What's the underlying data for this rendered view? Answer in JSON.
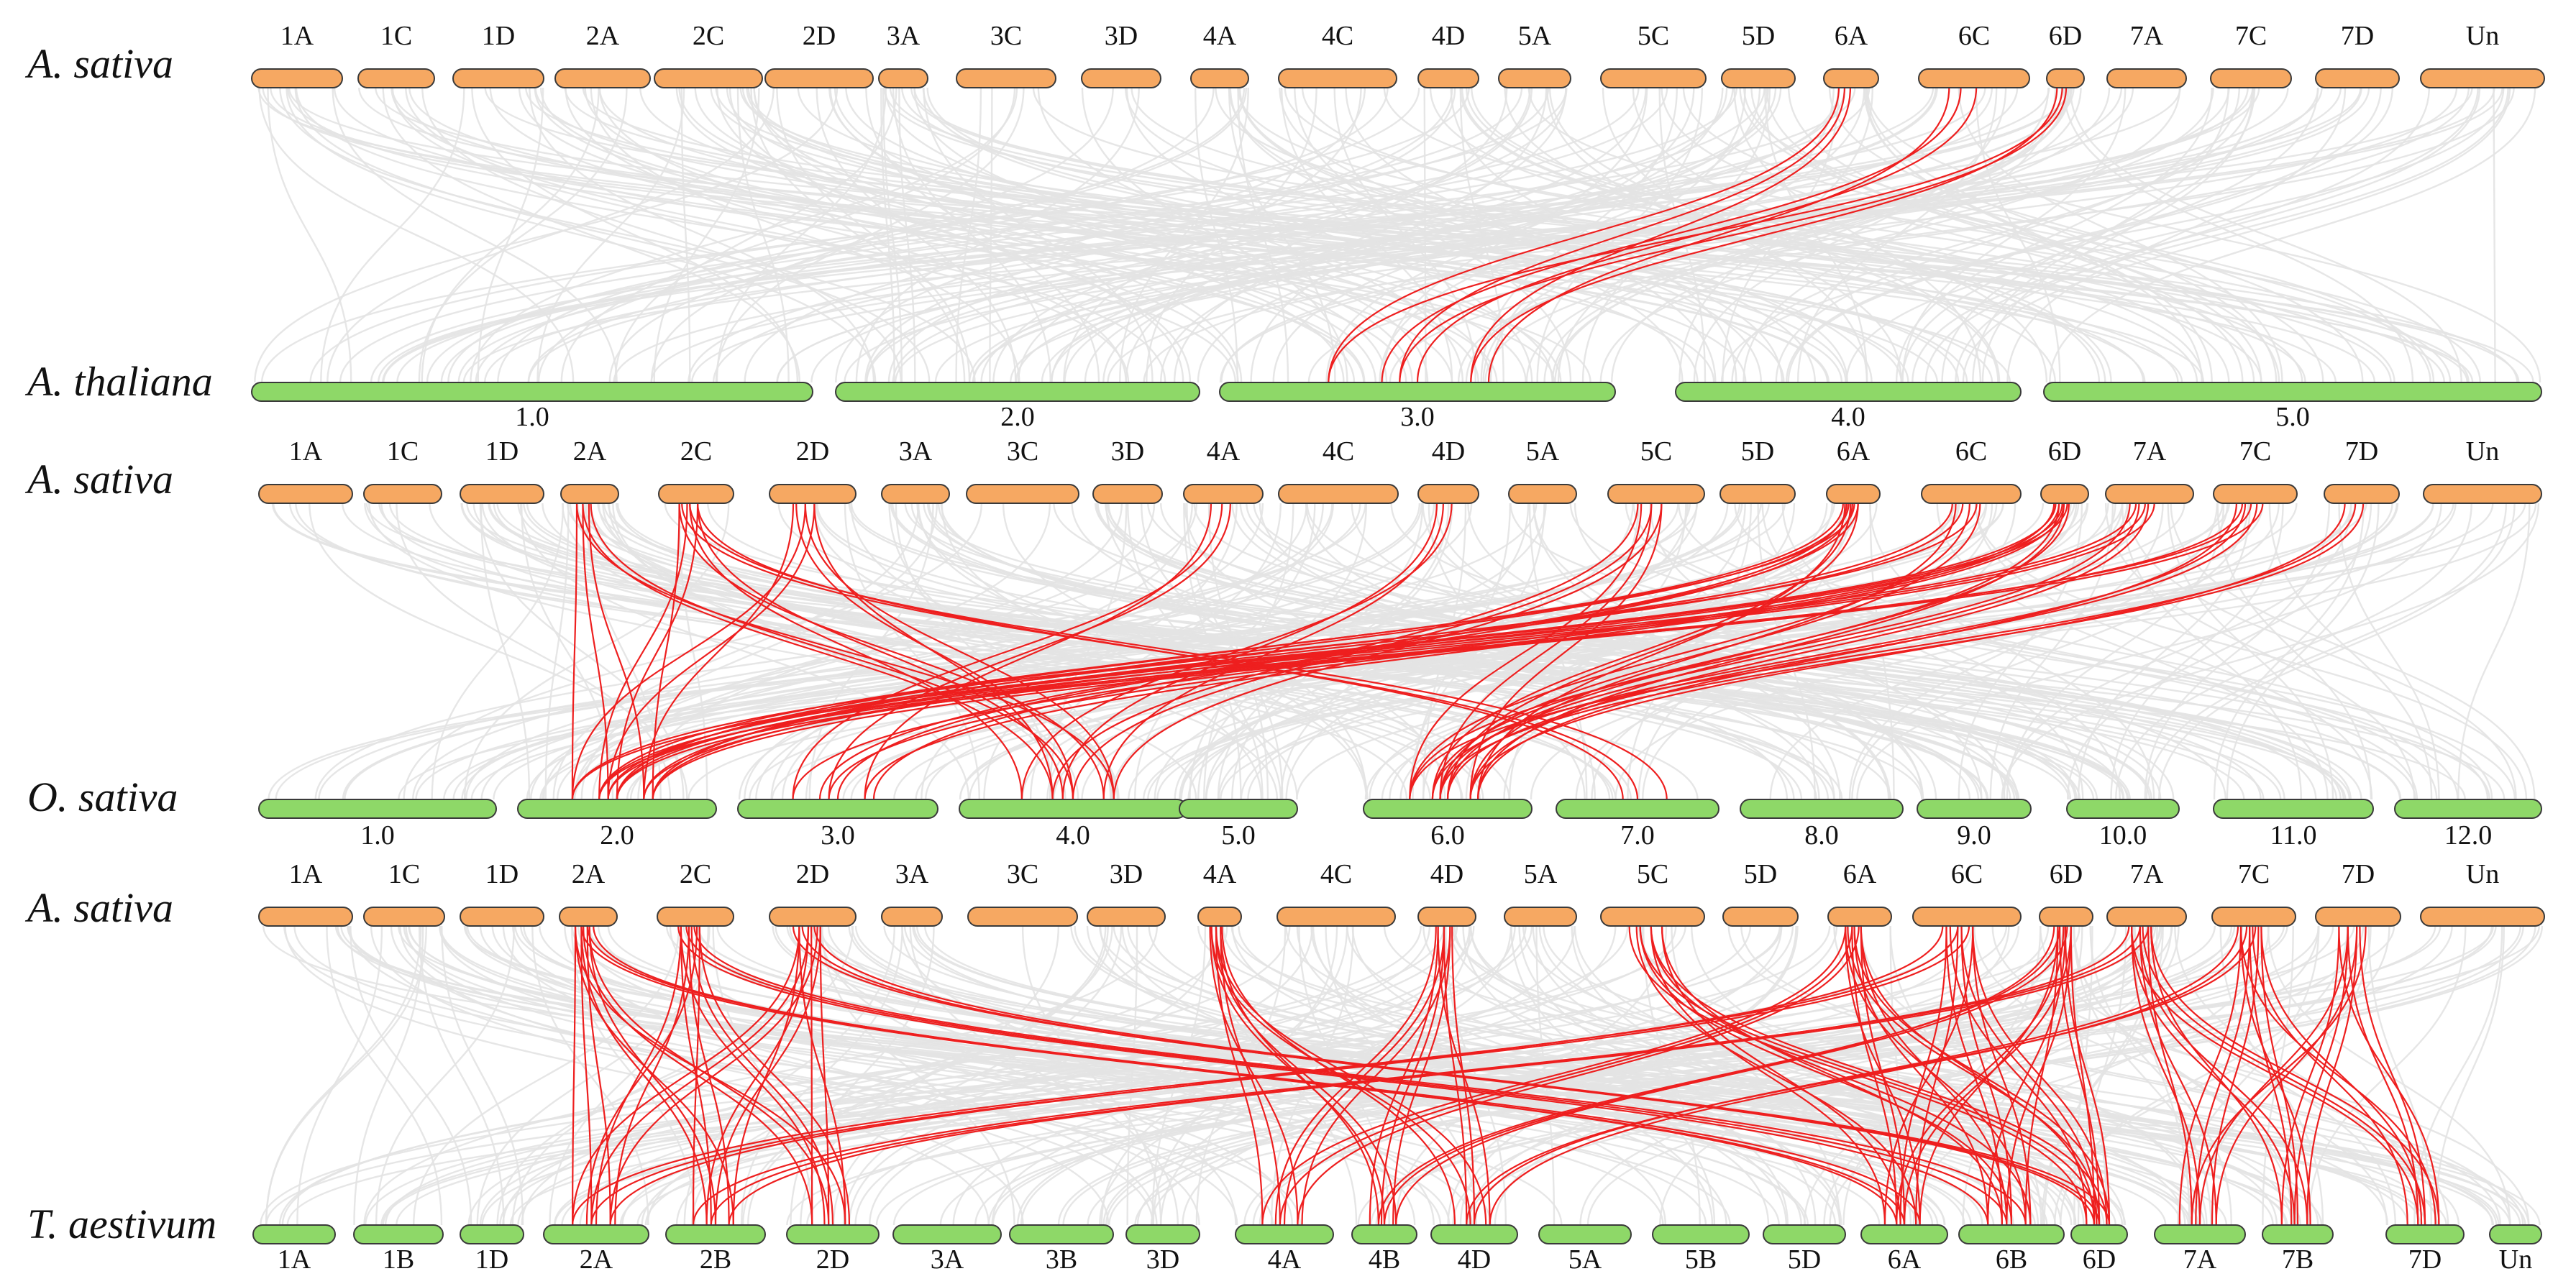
{
  "colors": {
    "sativa": "#f6a862",
    "other": "#8ed868",
    "background_link": "#e3e3e3",
    "highlight_link": "#ee1f1f"
  },
  "panels": [
    {
      "top": {
        "species": "A. sativa",
        "chromosomes": [
          "1A",
          "1C",
          "1D",
          "2A",
          "2C",
          "2D",
          "3A",
          "3C",
          "3D",
          "4A",
          "4C",
          "4D",
          "5A",
          "5C",
          "5D",
          "6A",
          "6C",
          "6D",
          "7A",
          "7C",
          "7D",
          "Un"
        ]
      },
      "bottom": {
        "species": "A. thaliana",
        "chromosomes": [
          "1.0",
          "2.0",
          "3.0",
          "4.0",
          "5.0"
        ]
      },
      "links": [
        {
          "from": "6A",
          "to": "3.0"
        },
        {
          "from": "6C",
          "to": "3.0"
        },
        {
          "from": "6D",
          "to": "3.0"
        }
      ]
    },
    {
      "top": {
        "species": "A. sativa",
        "chromosomes": [
          "1A",
          "1C",
          "1D",
          "2A",
          "2C",
          "2D",
          "3A",
          "3C",
          "3D",
          "4A",
          "4C",
          "4D",
          "5A",
          "5C",
          "5D",
          "6A",
          "6C",
          "6D",
          "7A",
          "7C",
          "7D",
          "Un"
        ]
      },
      "bottom": {
        "species": "O. sativa",
        "chromosomes": [
          "1.0",
          "2.0",
          "3.0",
          "4.0",
          "5.0",
          "6.0",
          "7.0",
          "8.0",
          "9.0",
          "10.0",
          "11.0",
          "12.0"
        ]
      },
      "links": [
        {
          "from": "2A",
          "to": "2.0"
        },
        {
          "from": "2C",
          "to": "2.0"
        },
        {
          "from": "2D",
          "to": "2.0"
        },
        {
          "from": "6A",
          "to": "2.0"
        },
        {
          "from": "6C",
          "to": "2.0"
        },
        {
          "from": "6D",
          "to": "2.0"
        },
        {
          "from": "7A",
          "to": "2.0"
        },
        {
          "from": "7C",
          "to": "2.0"
        },
        {
          "from": "4A",
          "to": "3.0"
        },
        {
          "from": "6A",
          "to": "3.0"
        },
        {
          "from": "6D",
          "to": "3.0"
        },
        {
          "from": "2A",
          "to": "4.0"
        },
        {
          "from": "2C",
          "to": "4.0"
        },
        {
          "from": "2D",
          "to": "4.0"
        },
        {
          "from": "4D",
          "to": "4.0"
        },
        {
          "from": "5C",
          "to": "4.0"
        },
        {
          "from": "5C",
          "to": "6.0"
        },
        {
          "from": "6A",
          "to": "6.0"
        },
        {
          "from": "6C",
          "to": "6.0"
        },
        {
          "from": "6D",
          "to": "6.0"
        },
        {
          "from": "7A",
          "to": "6.0"
        },
        {
          "from": "7C",
          "to": "6.0"
        },
        {
          "from": "7D",
          "to": "6.0"
        },
        {
          "from": "2C",
          "to": "7.0"
        }
      ]
    },
    {
      "top": {
        "species": "A. sativa",
        "chromosomes": [
          "1A",
          "1C",
          "1D",
          "2A",
          "2C",
          "2D",
          "3A",
          "3C",
          "3D",
          "4A",
          "4C",
          "4D",
          "5A",
          "5C",
          "5D",
          "6A",
          "6C",
          "6D",
          "7A",
          "7C",
          "7D",
          "Un"
        ]
      },
      "bottom": {
        "species": "T. aestivum",
        "chromosomes": [
          "1A",
          "1B",
          "1D",
          "2A",
          "2B",
          "2D",
          "3A",
          "3B",
          "3D",
          "4A",
          "4B",
          "4D",
          "5A",
          "5B",
          "5D",
          "6A",
          "6B",
          "6D",
          "7A",
          "7B",
          "7D",
          "Un"
        ]
      },
      "links": [
        {
          "from": "2A",
          "to": "2A"
        },
        {
          "from": "2A",
          "to": "2B"
        },
        {
          "from": "2A",
          "to": "2D"
        },
        {
          "from": "2C",
          "to": "2A"
        },
        {
          "from": "2C",
          "to": "2B"
        },
        {
          "from": "2C",
          "to": "2D"
        },
        {
          "from": "2D",
          "to": "2A"
        },
        {
          "from": "2D",
          "to": "2B"
        },
        {
          "from": "2D",
          "to": "2D"
        },
        {
          "from": "2A",
          "to": "6A"
        },
        {
          "from": "2C",
          "to": "6B"
        },
        {
          "from": "2D",
          "to": "6D"
        },
        {
          "from": "4A",
          "to": "4A"
        },
        {
          "from": "4A",
          "to": "4B"
        },
        {
          "from": "4A",
          "to": "4D"
        },
        {
          "from": "4D",
          "to": "4A"
        },
        {
          "from": "4D",
          "to": "4B"
        },
        {
          "from": "4D",
          "to": "4D"
        },
        {
          "from": "5C",
          "to": "6A"
        },
        {
          "from": "5C",
          "to": "6B"
        },
        {
          "from": "5C",
          "to": "6D"
        },
        {
          "from": "6A",
          "to": "6A"
        },
        {
          "from": "6A",
          "to": "6B"
        },
        {
          "from": "6A",
          "to": "6D"
        },
        {
          "from": "6C",
          "to": "6A"
        },
        {
          "from": "6C",
          "to": "6B"
        },
        {
          "from": "6C",
          "to": "6D"
        },
        {
          "from": "6D",
          "to": "6A"
        },
        {
          "from": "6D",
          "to": "6B"
        },
        {
          "from": "6D",
          "to": "6D"
        },
        {
          "from": "6A",
          "to": "4A"
        },
        {
          "from": "6D",
          "to": "4B"
        },
        {
          "from": "6C",
          "to": "2A"
        },
        {
          "from": "7A",
          "to": "7A"
        },
        {
          "from": "7A",
          "to": "7B"
        },
        {
          "from": "7A",
          "to": "7D"
        },
        {
          "from": "7C",
          "to": "7A"
        },
        {
          "from": "7C",
          "to": "7B"
        },
        {
          "from": "7C",
          "to": "7D"
        },
        {
          "from": "7D",
          "to": "7A"
        },
        {
          "from": "7D",
          "to": "7B"
        },
        {
          "from": "7D",
          "to": "7D"
        },
        {
          "from": "7A",
          "to": "2B"
        },
        {
          "from": "7C",
          "to": "4D"
        }
      ]
    }
  ]
}
